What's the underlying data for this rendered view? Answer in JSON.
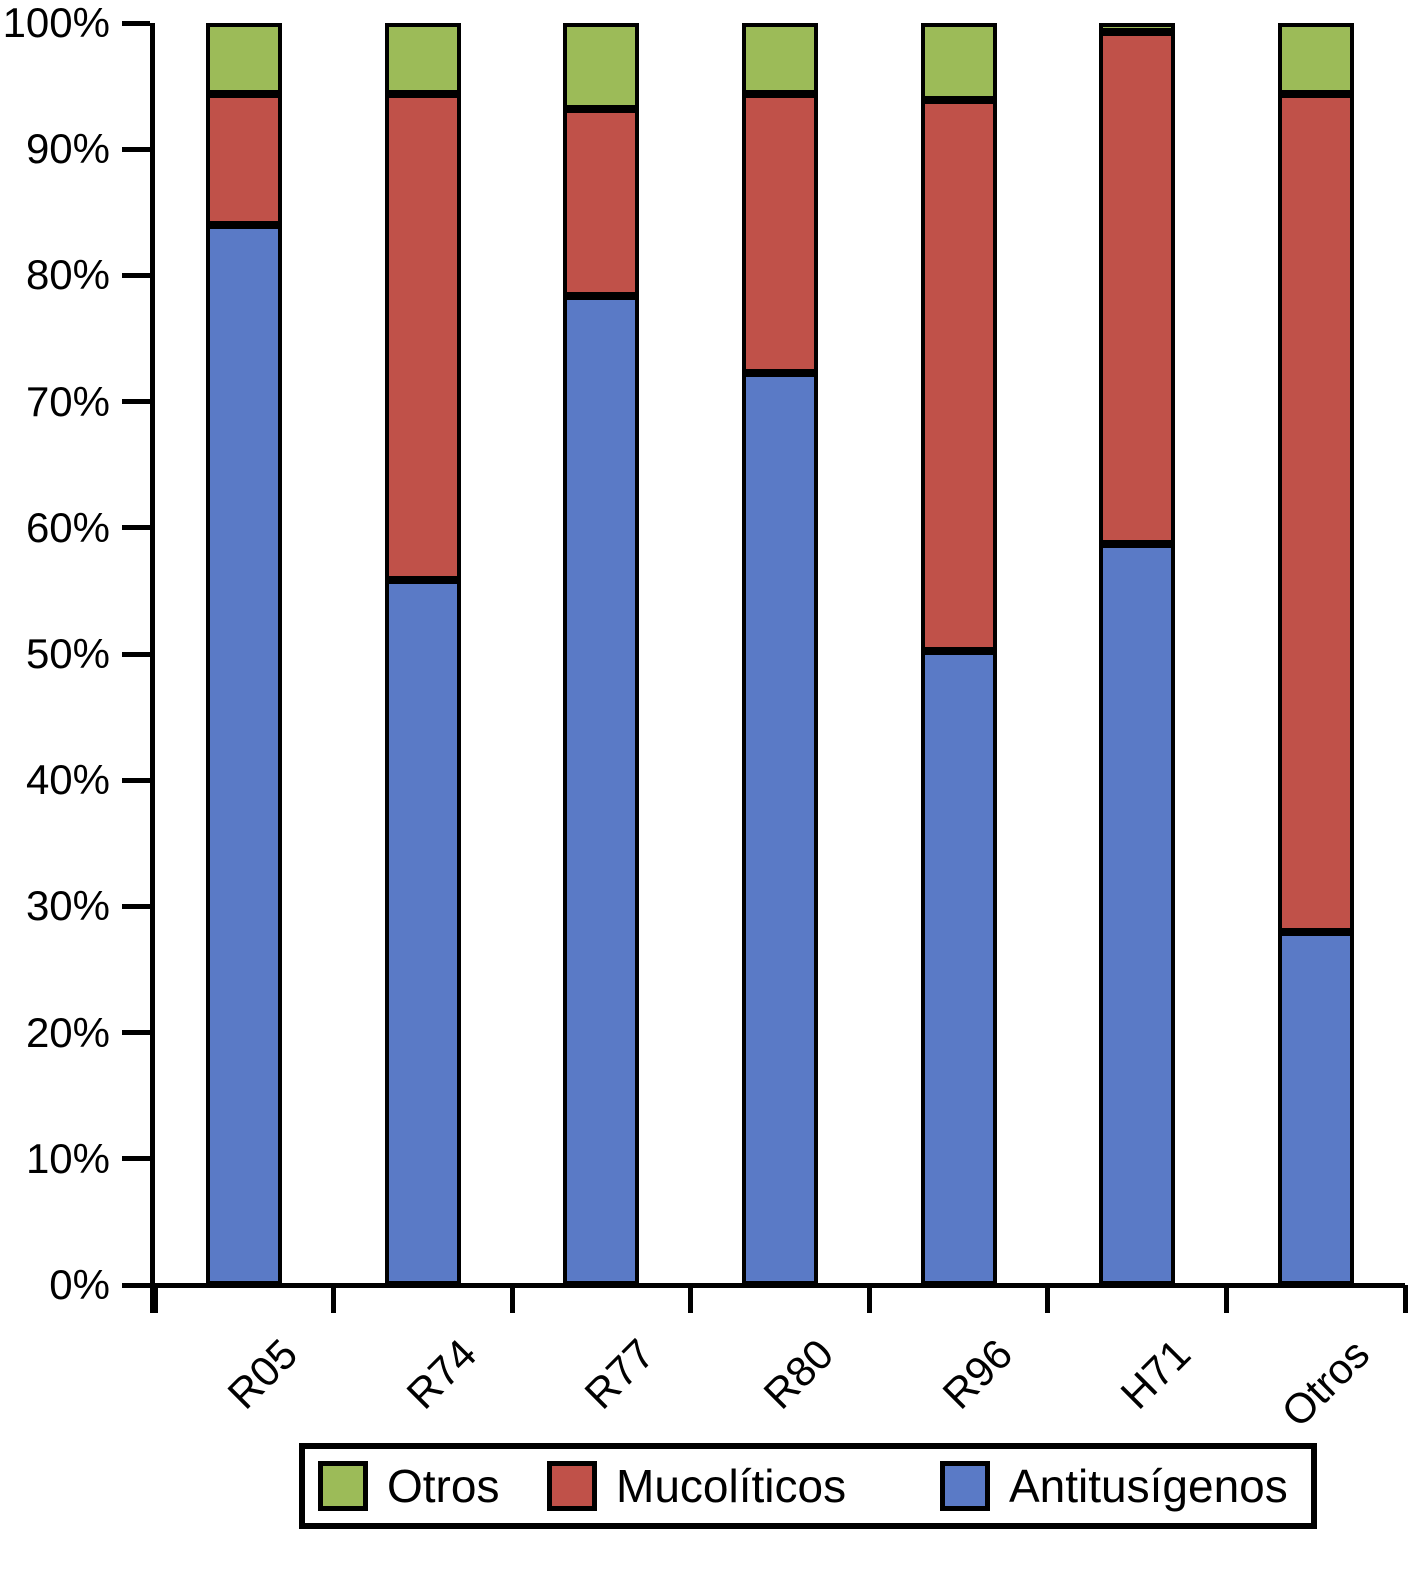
{
  "chart_data": {
    "type": "bar",
    "subtype": "stacked-100-percent",
    "title": "",
    "xlabel": "",
    "ylabel": "",
    "grid": false,
    "categories": [
      "R05",
      "R74",
      "R77",
      "R80",
      "R96",
      "H71",
      "Otros"
    ],
    "series": [
      {
        "name": "Antitusígenos",
        "color": "#5A7AC6",
        "values": [
          84.0,
          55.9,
          78.4,
          72.3,
          50.2,
          58.7,
          28.0
        ]
      },
      {
        "name": "Mucolíticos",
        "color": "#C05149",
        "values": [
          10.4,
          38.5,
          14.8,
          22.1,
          43.7,
          40.6,
          66.4
        ]
      },
      {
        "name": "Otros",
        "color": "#9CBB58",
        "values": [
          5.6,
          5.6,
          6.8,
          5.6,
          6.1,
          0.7,
          5.6
        ]
      }
    ],
    "y_axis": {
      "min": 0,
      "max": 100,
      "tick_step": 10,
      "tick_labels": [
        "0%",
        "10%",
        "20%",
        "30%",
        "40%",
        "50%",
        "60%",
        "70%",
        "80%",
        "90%",
        "100%"
      ]
    },
    "legend": {
      "position": "bottom",
      "entries": [
        "Otros",
        "Mucolíticos",
        "Antitusígenos"
      ]
    },
    "colors": {
      "axis": "#000000",
      "bar_border": "#000000",
      "background": "#ffffff"
    }
  }
}
